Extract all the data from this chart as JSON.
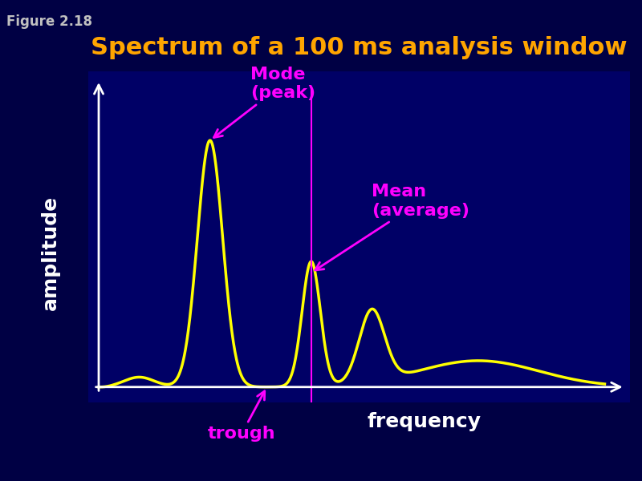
{
  "title": "Spectrum of a 100 ms analysis window",
  "title_color": "#FFA500",
  "title_fontsize": 22,
  "figure_label": "Figure 2.18",
  "figure_label_color": "#C0C0C0",
  "background_color_outer": "#000080",
  "background_color_inner": "#000080",
  "curve_color": "#FFFF00",
  "curve_linewidth": 2.5,
  "axis_color": "#FFFFFF",
  "ylabel": "amplitude",
  "xlabel": "frequency",
  "xlabel_fontsize": 18,
  "ylabel_fontsize": 18,
  "axis_label_color": "#FFFFFF",
  "mode_label": "Mode\n(peak)",
  "mean_label": "Mean\n(average)",
  "trough_label": "trough",
  "annotation_color": "#FF00FF",
  "annotation_fontsize": 16,
  "vline_color": "#FF00FF",
  "vline_x": 0.42
}
